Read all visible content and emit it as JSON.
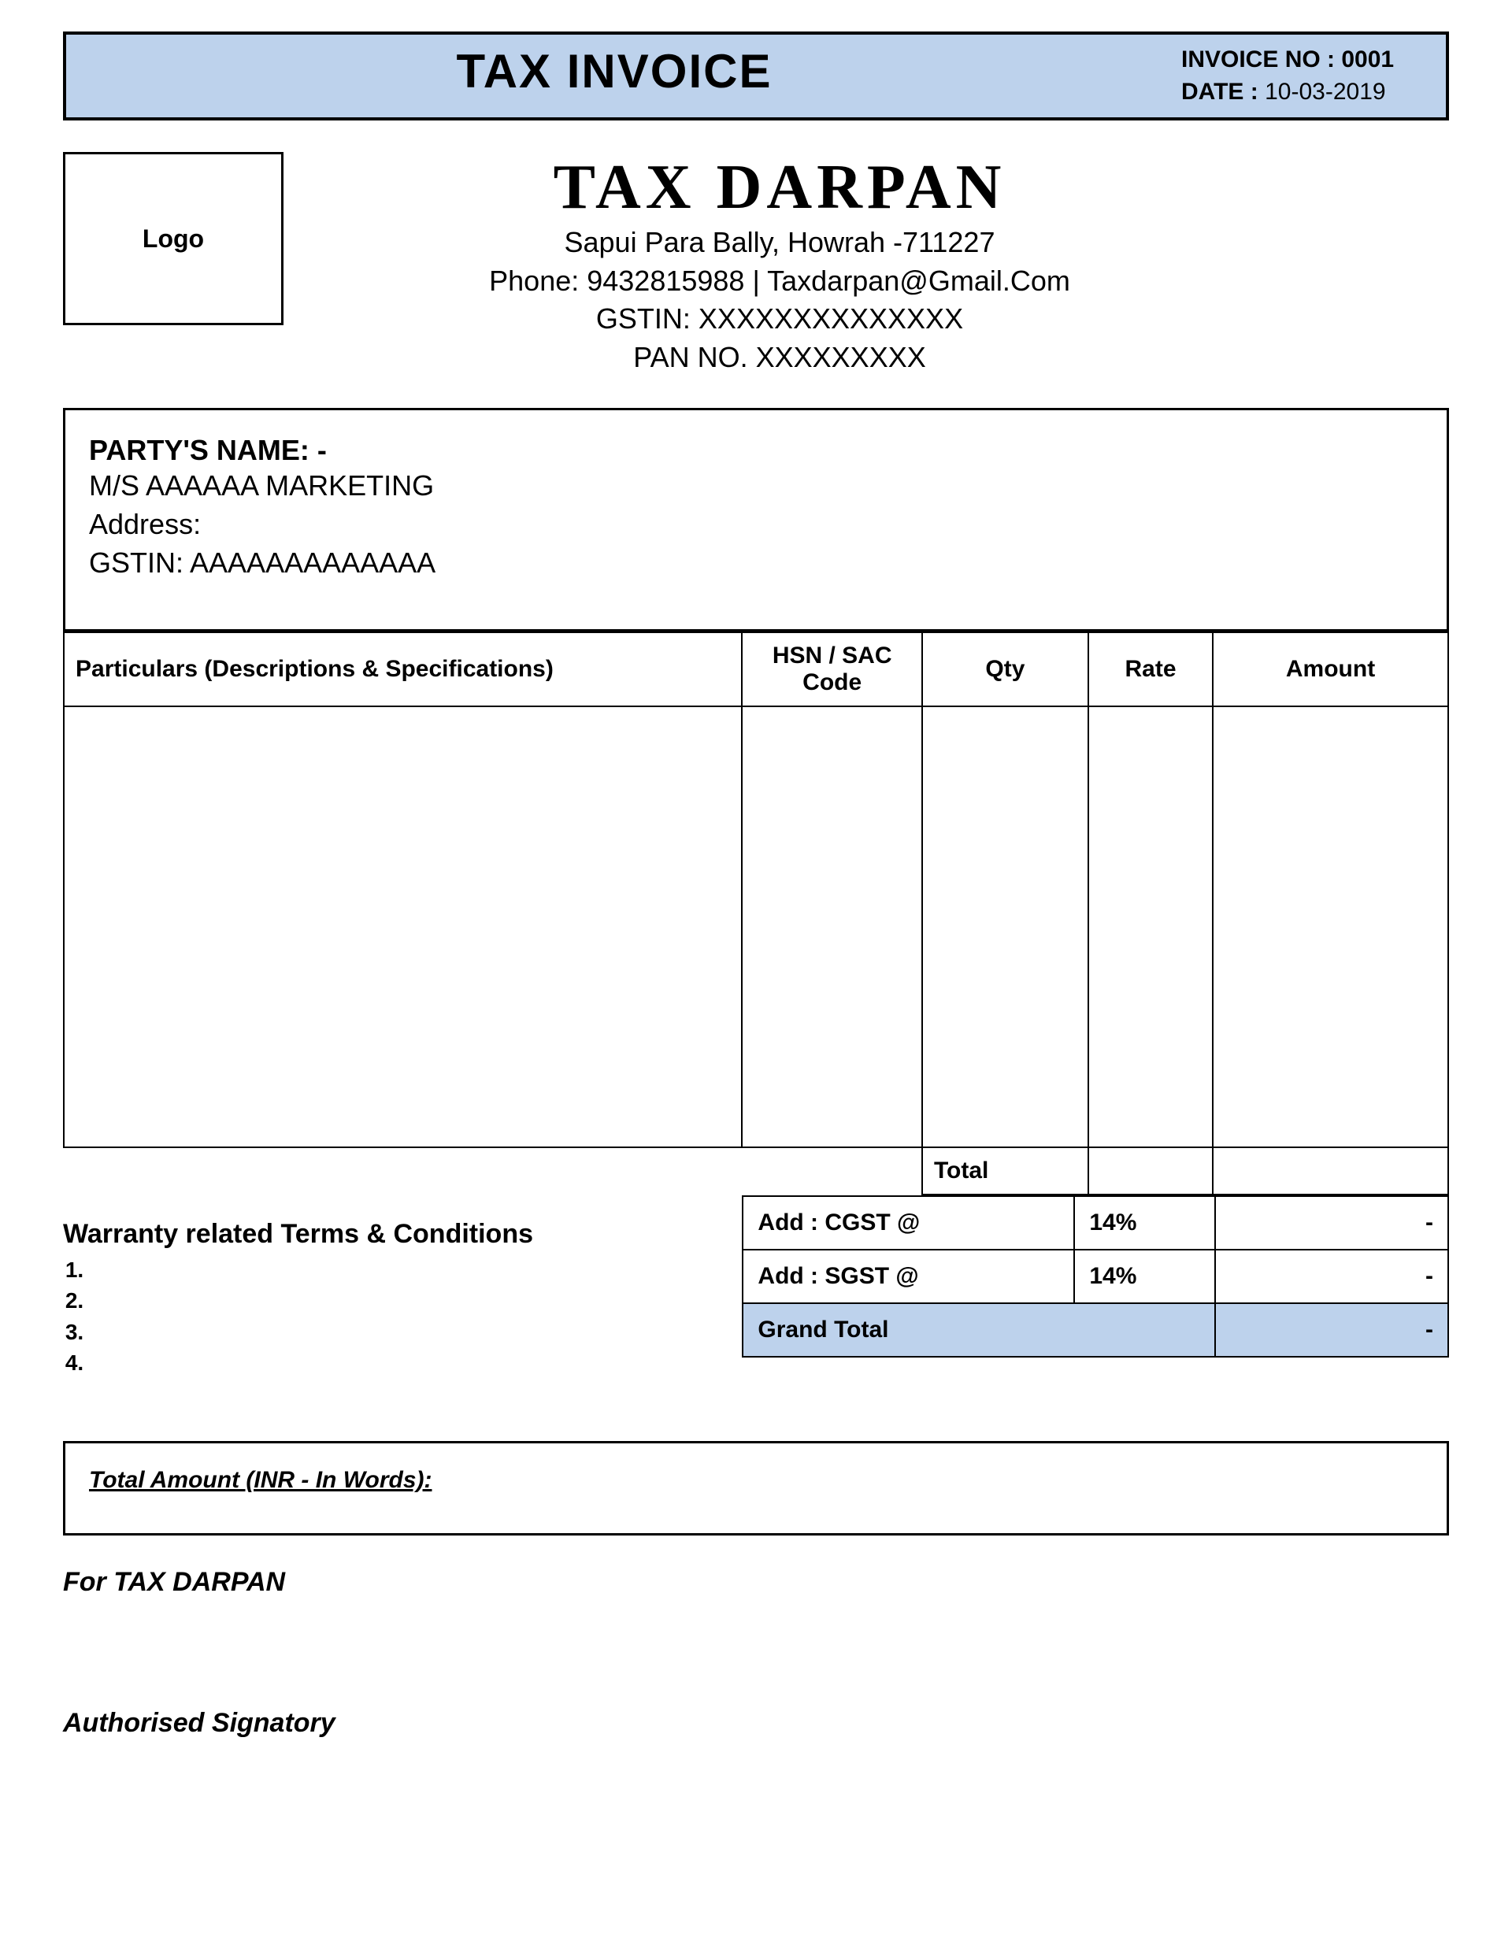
{
  "colors": {
    "banner_bg": "#bdd2ec",
    "border": "#000000",
    "page_bg": "#ffffff",
    "text": "#000000",
    "grand_total_bg": "#bdd2ec"
  },
  "header": {
    "title": "TAX INVOICE",
    "invoice_no_label": "INVOICE NO :",
    "invoice_no": "0001",
    "date_label": "DATE :",
    "date": "10-03-2019"
  },
  "company": {
    "logo_text": "Logo",
    "name": "TAX DARPAN",
    "address": "Sapui Para Bally, Howrah -711227",
    "contact": "Phone: 9432815988 | Taxdarpan@Gmail.Com",
    "gstin": "GSTIN: XXXXXXXXXXXXXX",
    "pan": "PAN NO. XXXXXXXXX"
  },
  "party": {
    "label": "PARTY'S NAME: -",
    "name": "M/S AAAAAA MARKETING",
    "address_label": "Address:",
    "gstin": "GSTIN: AAAAAAAAAAAAA"
  },
  "table": {
    "columns": {
      "particulars": "Particulars (Descriptions & Specifications)",
      "hsn": "HSN / SAC Code",
      "qty": "Qty",
      "rate": "Rate",
      "amount": "Amount"
    },
    "col_widths_pct": {
      "particulars": 49,
      "hsn": 13,
      "qty": 12,
      "rate": 9,
      "amount": 17
    },
    "rows": [
      {
        "particulars": "",
        "hsn": "",
        "qty": "",
        "rate": "",
        "amount": ""
      }
    ],
    "total_label": "Total",
    "total_qty": "",
    "total_rate": "",
    "total_amount": ""
  },
  "tax": {
    "cgst_label": "Add : CGST @",
    "cgst_pct": "14%",
    "cgst_amount": "-",
    "sgst_label": "Add : SGST @",
    "sgst_pct": "14%",
    "sgst_amount": "-",
    "grand_total_label": "Grand Total",
    "grand_total_amount": "-"
  },
  "warranty": {
    "title": "Warranty related Terms & Conditions",
    "items": [
      "",
      "",
      "",
      ""
    ]
  },
  "words": {
    "label": "Total Amount (INR - In Words):",
    "value": ""
  },
  "footer": {
    "for_label": "For",
    "for_name": "TAX DARPAN",
    "signatory": "Authorised Signatory"
  }
}
